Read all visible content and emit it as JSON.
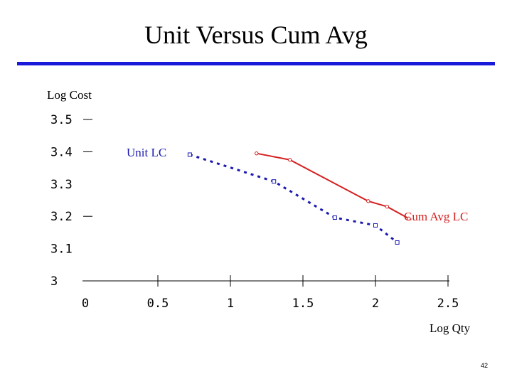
{
  "slide": {
    "title": "Unit Versus Cum Avg",
    "page_number": "42",
    "colors": {
      "rule": "#1a1adb",
      "cum_avg": "#d42020",
      "unit": "#1a1ab0"
    }
  },
  "chart_data": {
    "type": "line",
    "title": "Unit Versus Cum Avg",
    "xlabel": "Log Qty",
    "ylabel": "Log Cost",
    "xlim": [
      0,
      2.5
    ],
    "ylim": [
      3,
      3.5
    ],
    "x_ticks": [
      0,
      0.5,
      1,
      1.5,
      2,
      2.5
    ],
    "x_tick_labels": [
      "0",
      "0.5",
      "1",
      "1.5",
      "2",
      "2.5"
    ],
    "y_ticks": [
      3,
      3.1,
      3.2,
      3.3,
      3.4,
      3.5
    ],
    "y_tick_labels": [
      "3",
      "3.1",
      "3.2",
      "3.3",
      "3.4",
      "3.5"
    ],
    "y_tick_marks": [
      3.2,
      3.4,
      3.5
    ],
    "grid": false,
    "series": [
      {
        "name": "Cum Avg LC",
        "color": "#d42020",
        "style": "solid",
        "marker": "circle",
        "points": [
          {
            "x": 1.18,
            "y": 3.395
          },
          {
            "x": 1.41,
            "y": 3.375
          },
          {
            "x": 1.95,
            "y": 3.247
          },
          {
            "x": 2.08,
            "y": 3.23
          },
          {
            "x": 2.23,
            "y": 3.193
          }
        ]
      },
      {
        "name": "Unit LC",
        "color": "#1a1ab0",
        "style": "dashed",
        "marker": "square",
        "points": [
          {
            "x": 0.72,
            "y": 3.391
          },
          {
            "x": 1.3,
            "y": 3.308
          },
          {
            "x": 1.72,
            "y": 3.196
          },
          {
            "x": 2.0,
            "y": 3.172
          },
          {
            "x": 2.15,
            "y": 3.119
          }
        ]
      }
    ]
  }
}
